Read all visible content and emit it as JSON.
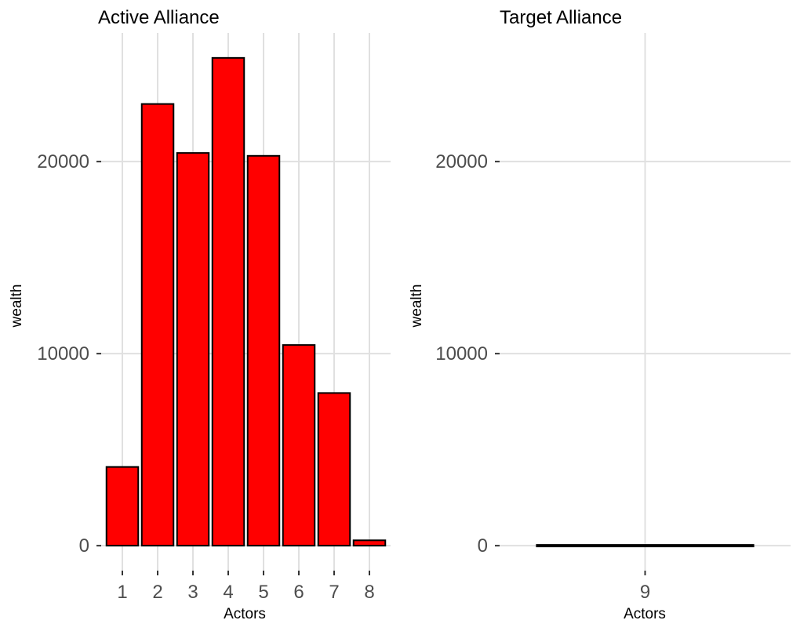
{
  "chart_data": [
    {
      "type": "bar",
      "title": "Active Alliance",
      "xlabel": "Actors",
      "ylabel": "wealth",
      "categories": [
        "1",
        "2",
        "3",
        "4",
        "5",
        "6",
        "7",
        "8"
      ],
      "values": [
        4100,
        23000,
        20450,
        25400,
        20300,
        10450,
        7950,
        280
      ],
      "yticks": [
        0,
        10000,
        20000
      ],
      "ytick_labels": [
        "0",
        "10000",
        "20000"
      ],
      "ylim": [
        -1300,
        26700
      ],
      "grid": true,
      "bar_color": "#ff0000",
      "bar_outline": "#000000"
    },
    {
      "type": "bar",
      "title": "Target Alliance",
      "xlabel": "Actors",
      "ylabel": "wealth",
      "categories": [
        "9"
      ],
      "values": [
        0
      ],
      "yticks": [
        0,
        10000,
        20000
      ],
      "ytick_labels": [
        "0",
        "10000",
        "20000"
      ],
      "ylim": [
        -1300,
        26700
      ],
      "grid": true,
      "bar_color": "#ff0000",
      "bar_outline": "#000000"
    }
  ]
}
